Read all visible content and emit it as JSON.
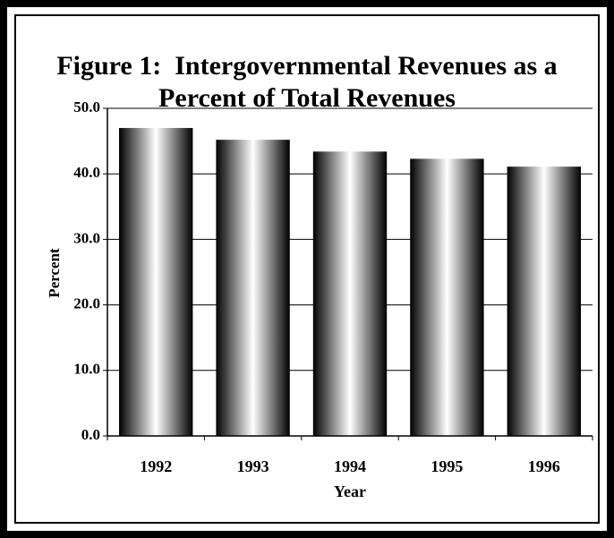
{
  "chart_data": {
    "type": "bar",
    "title": "Figure 1:  Intergovernmental Revenues as a Percent of Total Revenues",
    "x_label": "Year",
    "y_label": "Percent",
    "categories": [
      "1992",
      "1993",
      "1994",
      "1995",
      "1996"
    ],
    "values": [
      47.0,
      45.2,
      43.4,
      42.3,
      41.1
    ],
    "ylim": [
      0,
      50
    ],
    "yticks": [
      {
        "value": 0,
        "label": "0.0"
      },
      {
        "value": 10,
        "label": "10.0"
      },
      {
        "value": 20,
        "label": "20.0"
      },
      {
        "value": 30,
        "label": "30.0"
      },
      {
        "value": 40,
        "label": "40.0"
      },
      {
        "value": 50,
        "label": "50.0"
      }
    ],
    "grid": true
  }
}
